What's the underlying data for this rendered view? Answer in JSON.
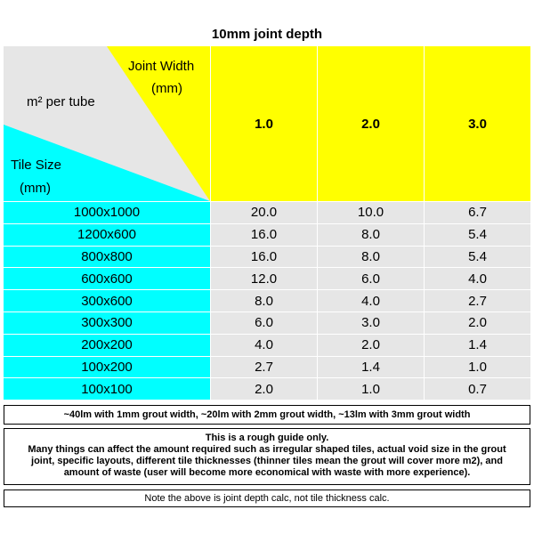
{
  "title": "10mm joint depth",
  "header": {
    "corner_top": "m² per tube",
    "joint_width": [
      "Joint Width",
      "(mm)"
    ],
    "tile_size": [
      "Tile Size",
      "(mm)"
    ],
    "columns": [
      "1.0",
      "2.0",
      "3.0"
    ]
  },
  "table": {
    "rows": [
      [
        "1000x1000",
        "20.0",
        "10.0",
        "6.7"
      ],
      [
        "1200x600",
        "16.0",
        "8.0",
        "5.4"
      ],
      [
        "800x800",
        "16.0",
        "8.0",
        "5.4"
      ],
      [
        "600x600",
        "12.0",
        "6.0",
        "4.0"
      ],
      [
        "300x600",
        "8.0",
        "4.0",
        "2.7"
      ],
      [
        "300x300",
        "6.0",
        "3.0",
        "2.0"
      ],
      [
        "200x200",
        "4.0",
        "2.0",
        "1.4"
      ],
      [
        "100x200",
        "2.7",
        "1.4",
        "1.0"
      ],
      [
        "100x100",
        "2.0",
        "1.0",
        "0.7"
      ]
    ]
  },
  "notes": [
    "~40lm with 1mm grout width, ~20lm with 2mm grout width, ~13lm with 3mm grout width",
    [
      "This is a rough guide only.",
      "Many things can affect the amount required such as irregular shaped tiles, actual void size in the grout",
      "joint, specific layouts, different tile thicknesses (thinner tiles mean the grout will cover more m2), and",
      "amount of waste (user will become more economical with waste with more experience)."
    ],
    "Note the above is joint depth calc, not tile thickness calc."
  ]
}
